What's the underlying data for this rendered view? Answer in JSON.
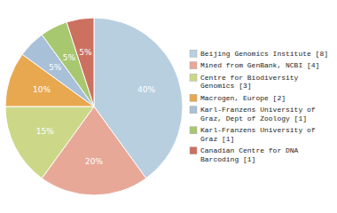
{
  "chart_data": {
    "type": "pie",
    "categories": [
      "Beijing Genomics Institute [8]",
      "Mined from GenBank, NCBI [4]",
      "Centre for Biodiversity\nGenomics [3]",
      "Macrogen, Europe [2]",
      "Karl-Franzens University of\nGraz, Dept of Zoology [1]",
      "Karl-Franzens University of\nGraz [1]",
      "Canadian Centre for DNA\nBarcoding [1]"
    ],
    "values": [
      40,
      20,
      15,
      10,
      5,
      5,
      5
    ],
    "value_labels": [
      "40%",
      "20%",
      "15%",
      "10%",
      "5%",
      "5%",
      "5%"
    ],
    "colors": [
      "#b8cfe0",
      "#e8a898",
      "#ccd888",
      "#e8a850",
      "#a8c0d8",
      "#a8c870",
      "#cc7060"
    ],
    "data_labels": true,
    "legend": "right"
  }
}
